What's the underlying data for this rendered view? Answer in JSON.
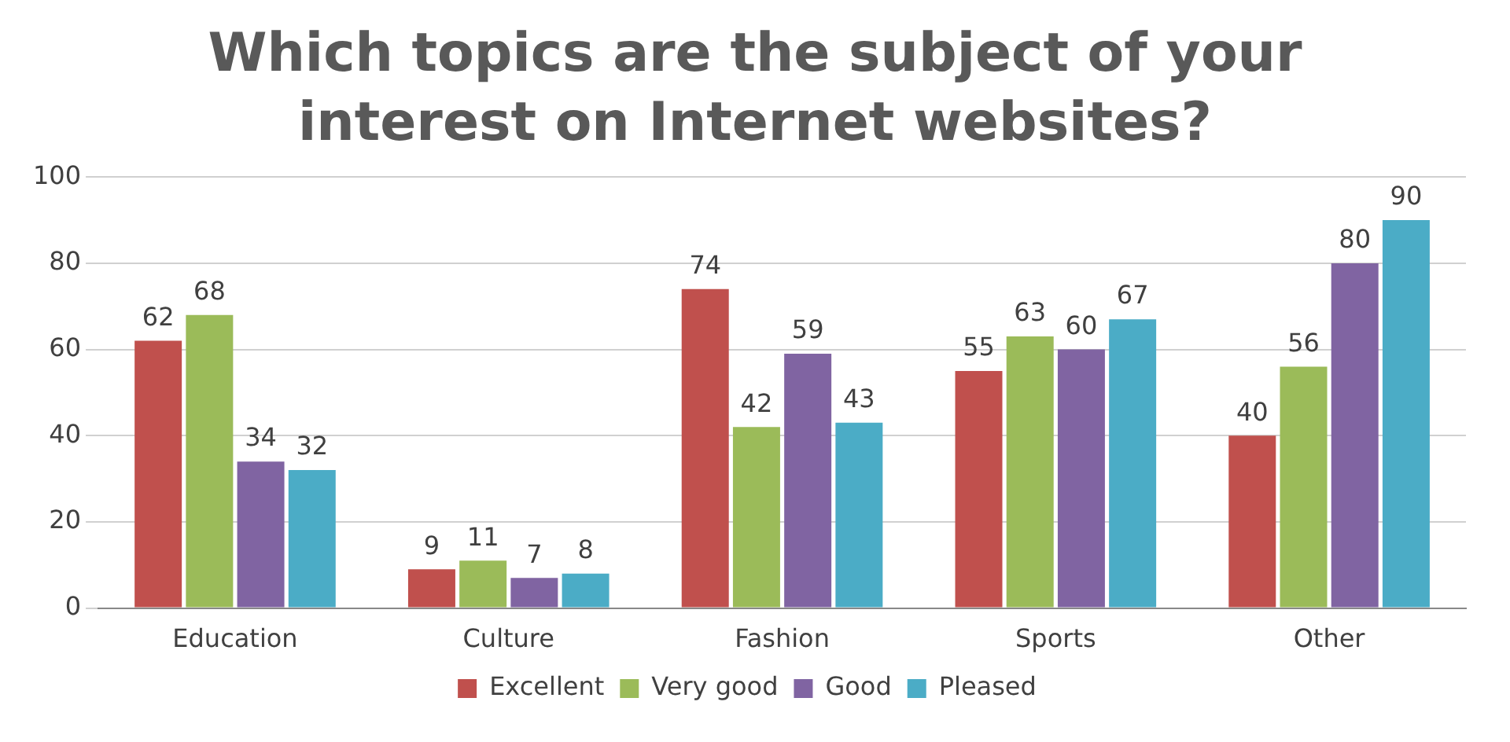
{
  "chart_data": {
    "type": "bar",
    "title": "Which topics are the subject of your interest on Internet websites?",
    "categories": [
      "Education",
      "Culture",
      "Fashion",
      "Sports",
      "Other"
    ],
    "series": [
      {
        "name": "Excellent",
        "color": "#c0504d",
        "values": [
          62,
          9,
          74,
          55,
          40
        ]
      },
      {
        "name": "Very good",
        "color": "#9bbb59",
        "values": [
          68,
          11,
          42,
          63,
          56
        ]
      },
      {
        "name": "Good",
        "color": "#8064a2",
        "values": [
          34,
          7,
          59,
          60,
          80
        ]
      },
      {
        "name": "Pleased",
        "color": "#4bacc6",
        "values": [
          32,
          8,
          43,
          67,
          90
        ]
      }
    ],
    "ylim": [
      0,
      100
    ],
    "yticks": [
      0,
      20,
      40,
      60,
      80,
      100
    ],
    "grid": "y",
    "legend": "bottom",
    "data_labels": true
  }
}
